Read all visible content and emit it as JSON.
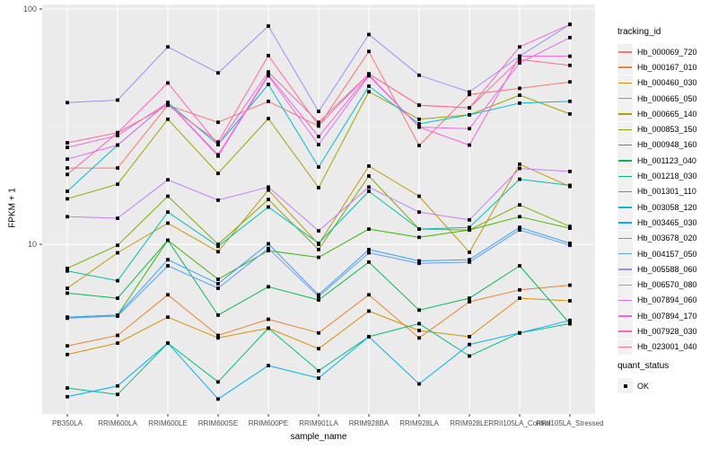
{
  "chart_data": {
    "type": "line",
    "title": "",
    "xlabel": "sample_name",
    "ylabel": "FPKM + 1",
    "y_scale": "log10",
    "ylim": [
      1.9,
      104.5
    ],
    "yticks": [
      {
        "value": 10,
        "label": "10"
      },
      {
        "value": 100,
        "label": "100"
      }
    ],
    "y_minor_gridlines": [
      3.162,
      31.62
    ],
    "grid": true,
    "panel_bg": "#EBEBEB",
    "grid_color": "#FFFFFF",
    "tick_label_color": "#4D4D4D",
    "point_color": "#000000",
    "point_shape": "filled-square",
    "categories": [
      "PB350LA",
      "RRIM600LA",
      "RRIM600LE",
      "RRIM600SE",
      "RRIM600PE",
      "RRIM901LA",
      "RRIM928BA",
      "RRIM928LA",
      "RRIM928LE",
      "RRII105LA_Control",
      "RRII105LA_Stressed"
    ],
    "legend": {
      "position": "right",
      "series_title": "tracking_id",
      "quant_title": "quant_status",
      "quant_items": [
        {
          "label": "OK",
          "marker": "black-square"
        }
      ]
    },
    "series": [
      {
        "name": "Hb_000069_720",
        "color": "#F8766D",
        "values": [
          21.1,
          21.1,
          39.0,
          33.0,
          40.5,
          31.8,
          66.0,
          26.3,
          43.3,
          46.0,
          49.0
        ]
      },
      {
        "name": "Hb_000167_010",
        "color": "#EA8331",
        "values": [
          3.7,
          4.1,
          6.1,
          4.1,
          4.8,
          4.2,
          6.1,
          4.0,
          5.7,
          6.4,
          6.7
        ]
      },
      {
        "name": "Hb_000460_030",
        "color": "#D89000",
        "values": [
          3.4,
          3.8,
          4.9,
          4.0,
          4.4,
          3.6,
          5.2,
          4.3,
          4.05,
          5.9,
          5.75
        ]
      },
      {
        "name": "Hb_000665_050",
        "color": "#C09B00",
        "values": [
          6.5,
          9.2,
          12.3,
          9.3,
          17.0,
          10.0,
          21.5,
          16.0,
          9.25,
          21.9,
          17.6
        ]
      },
      {
        "name": "Hb_000665_140",
        "color": "#A3A500",
        "values": [
          15.6,
          18.0,
          34.0,
          20.0,
          34.2,
          17.4,
          44.5,
          34.0,
          35.5,
          43.0,
          35.8
        ]
      },
      {
        "name": "Hb_000853_150",
        "color": "#7CAE00",
        "values": [
          7.9,
          9.9,
          16.0,
          10.0,
          15.5,
          9.5,
          19.5,
          11.6,
          11.5,
          14.7,
          11.9
        ]
      },
      {
        "name": "Hb_000948_160",
        "color": "#39B600",
        "values": [
          4.9,
          5.0,
          10.4,
          7.1,
          9.4,
          8.8,
          11.6,
          10.7,
          11.5,
          13.1,
          11.7
        ]
      },
      {
        "name": "Hb_001123_040",
        "color": "#00BB4E",
        "values": [
          6.2,
          5.9,
          10.4,
          5.0,
          6.6,
          5.8,
          8.4,
          5.25,
          5.9,
          8.1,
          4.6
        ]
      },
      {
        "name": "Hb_001218_030",
        "color": "#00C087",
        "values": [
          2.45,
          2.3,
          3.8,
          2.6,
          4.4,
          2.9,
          4.05,
          4.6,
          3.35,
          4.2,
          4.6
        ]
      },
      {
        "name": "Hb_001301_110",
        "color": "#00C0B2",
        "values": [
          7.7,
          7.0,
          13.7,
          9.8,
          14.4,
          10.1,
          16.8,
          11.6,
          11.8,
          18.9,
          17.8
        ]
      },
      {
        "name": "Hb_003058_120",
        "color": "#00BCD8",
        "values": [
          16.8,
          26.4,
          40.0,
          26.5,
          47.8,
          21.3,
          47.0,
          32.5,
          35.5,
          39.8,
          40.5
        ]
      },
      {
        "name": "Hb_003465_030",
        "color": "#00B0F6",
        "values": [
          2.25,
          2.5,
          3.8,
          2.2,
          3.05,
          2.7,
          4.05,
          2.55,
          3.75,
          4.2,
          4.75
        ]
      },
      {
        "name": "Hb_003678_020",
        "color": "#35A2FF",
        "values": [
          4.9,
          5.0,
          8.6,
          6.8,
          10.05,
          6.1,
          9.5,
          8.5,
          8.6,
          11.8,
          10.1
        ]
      },
      {
        "name": "Hb_004157_050",
        "color": "#619CFF",
        "values": [
          4.85,
          4.95,
          8.1,
          6.5,
          9.6,
          6.0,
          9.2,
          8.3,
          8.4,
          11.5,
          9.9
        ]
      },
      {
        "name": "Hb_005588_060",
        "color": "#9590FF",
        "values": [
          40.0,
          41.0,
          69.0,
          53.5,
          84.6,
          36.7,
          77.9,
          52.3,
          44.4,
          63.0,
          86.0
        ]
      },
      {
        "name": "Hb_006570_080",
        "color": "#C77CFF",
        "values": [
          13.1,
          12.9,
          18.8,
          15.4,
          17.5,
          11.4,
          17.5,
          13.7,
          12.7,
          21.0,
          20.4
        ]
      },
      {
        "name": "Hb_007894_060",
        "color": "#E76BF3",
        "values": [
          23.0,
          26.4,
          40.0,
          23.7,
          52.0,
          26.5,
          52.0,
          31.5,
          31.0,
          59.0,
          75.6
        ]
      },
      {
        "name": "Hb_007894_170",
        "color": "#FA62DB",
        "values": [
          25.8,
          29.0,
          40.0,
          24.0,
          52.5,
          28.7,
          52.5,
          31.5,
          26.4,
          63.0,
          63.0
        ]
      },
      {
        "name": "Hb_007928_030",
        "color": "#FF62BC",
        "values": [
          19.8,
          29.8,
          48.5,
          26.5,
          54.0,
          33.0,
          53.0,
          39.0,
          38.0,
          69.0,
          86.0
        ]
      },
      {
        "name": "Hb_023001_040",
        "color": "#FF6A98",
        "values": [
          27.0,
          29.8,
          39.0,
          27.2,
          63.4,
          32.0,
          53.0,
          39.0,
          38.0,
          61.0,
          57.6
        ]
      }
    ]
  }
}
